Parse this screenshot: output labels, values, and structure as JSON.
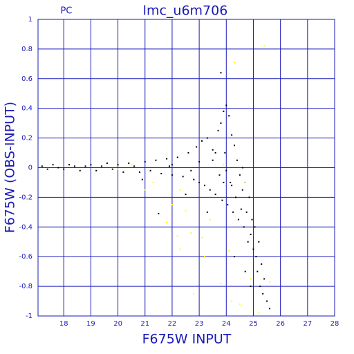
{
  "chart_data": {
    "type": "scatter",
    "title": "lmc_u6m706",
    "subtitle": "PC",
    "xlabel": "F675W INPUT",
    "ylabel": "F675W (OBS-INPUT)",
    "xlim": [
      17.05,
      28
    ],
    "ylim": [
      -1,
      1
    ],
    "xticks": [
      18,
      19,
      20,
      21,
      22,
      23,
      24,
      25,
      26,
      27,
      28
    ],
    "yticks": [
      -1,
      -0.8,
      -0.6,
      -0.4,
      -0.2,
      0,
      0.2,
      0.4,
      0.6,
      0.8,
      1
    ],
    "grid": true,
    "grid_color": "#1a1ab8",
    "series": [
      {
        "color": "#000000",
        "x": [
          17.2,
          17.4,
          17.6,
          17.8,
          18.0,
          18.2,
          18.4,
          18.6,
          18.8,
          19.0,
          19.2,
          19.4,
          19.6,
          19.8,
          20.0,
          20.2,
          20.4,
          20.6,
          20.8,
          21.0,
          21.2,
          21.4,
          21.6,
          21.8,
          22.0,
          22.2,
          22.4,
          22.6,
          22.8,
          22.9,
          23.0,
          23.1,
          23.2,
          23.3,
          23.4,
          23.5,
          23.6,
          23.7,
          23.75,
          23.8,
          23.85,
          23.9,
          23.95,
          24.0,
          24.05,
          24.1,
          24.15,
          24.2,
          24.25,
          24.3,
          24.35,
          24.4,
          24.45,
          24.5,
          24.55,
          24.6,
          24.65,
          24.7,
          24.75,
          24.8,
          24.85,
          24.9,
          24.95,
          25.0,
          25.05,
          25.1,
          25.15,
          25.2,
          25.25,
          25.3,
          25.35,
          25.4,
          25.5,
          25.6,
          23.8,
          21.5,
          20.9,
          22.5,
          23.3,
          24.3,
          23.5,
          24.0,
          22.0,
          23.0,
          24.2,
          24.6,
          23.6,
          23.9,
          22.7,
          21.9,
          24.7,
          24.9
        ],
        "values": [
          0.01,
          -0.01,
          0.02,
          0,
          -0.01,
          0.02,
          0.01,
          -0.02,
          0.01,
          0.02,
          -0.02,
          0.01,
          0.03,
          -0.01,
          0.02,
          -0.03,
          0.03,
          0.01,
          -0.03,
          0.04,
          -0.02,
          0.05,
          -0.04,
          0.06,
          -0.05,
          0.07,
          -0.06,
          0.1,
          -0.08,
          0.14,
          -0.1,
          0.18,
          -0.12,
          0.2,
          -0.15,
          0.12,
          -0.18,
          0.25,
          -0.05,
          0.3,
          -0.22,
          0.38,
          0.1,
          0.42,
          -0.25,
          0.35,
          -0.1,
          0.22,
          -0.3,
          0.15,
          -0.2,
          0.05,
          -0.35,
          -0.05,
          -0.28,
          -0.15,
          -0.4,
          -0.1,
          -0.3,
          -0.5,
          -0.2,
          -0.45,
          -0.35,
          -0.55,
          -0.4,
          -0.6,
          -0.7,
          -0.5,
          -0.8,
          -0.65,
          -0.85,
          -0.75,
          -0.9,
          -0.95,
          0.64,
          -0.31,
          -0.08,
          -0.18,
          -0.3,
          -0.6,
          0.05,
          -0.02,
          0.02,
          0.04,
          -0.12,
          0,
          0.1,
          -0.1,
          -0.02,
          0.01,
          -0.7,
          -0.8
        ]
      },
      {
        "color": "#ffff00",
        "x": [
          25.4,
          24.3,
          20.0,
          21.3,
          22.3,
          22.0,
          22.5,
          22.2,
          22.7,
          22.3,
          23.2,
          22.8,
          23.8,
          24.2,
          24.5,
          25.2,
          25.6,
          24.1,
          23.4,
          21.8,
          21.0,
          24.7,
          23.9,
          20.5,
          23.1,
          24.9
        ],
        "values": [
          0.82,
          0.71,
          -0.01,
          -0.1,
          -0.15,
          -0.25,
          -0.29,
          -0.46,
          -0.44,
          -0.55,
          -0.6,
          -0.85,
          -0.78,
          -0.9,
          -0.92,
          -0.98,
          -0.77,
          -0.56,
          -0.35,
          -0.37,
          -0.15,
          -0.1,
          0.02,
          0.02,
          -0.47,
          -0.75
        ]
      }
    ]
  }
}
